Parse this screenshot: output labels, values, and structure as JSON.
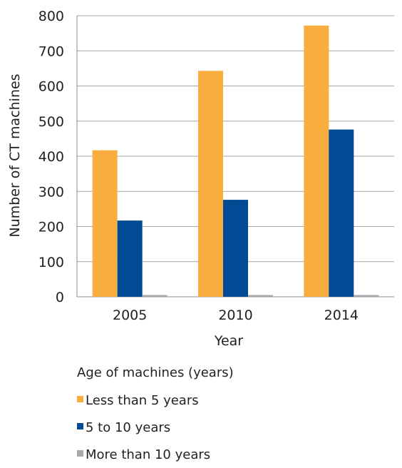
{
  "chart_data": {
    "type": "bar",
    "categories": [
      "2005",
      "2010",
      "2014"
    ],
    "series": [
      {
        "name": "Less than 5 years",
        "color": "#f9ad3f",
        "values": [
          417,
          643,
          772
        ]
      },
      {
        "name": "5 to 10 years",
        "color": "#004b93",
        "values": [
          217,
          276,
          476
        ]
      },
      {
        "name": "More than 10 years",
        "color": "#a7a9ac",
        "values": [
          5,
          5,
          5
        ]
      }
    ],
    "xlabel": "Year",
    "ylabel": "Number of CT machines",
    "ylim": [
      0,
      800
    ],
    "yticks": [
      "0",
      "100",
      "200",
      "300",
      "400",
      "500",
      "600",
      "700",
      "800"
    ],
    "grid": true,
    "legend_title": "Age of machines (years)",
    "legend_position": "bottom-left"
  }
}
